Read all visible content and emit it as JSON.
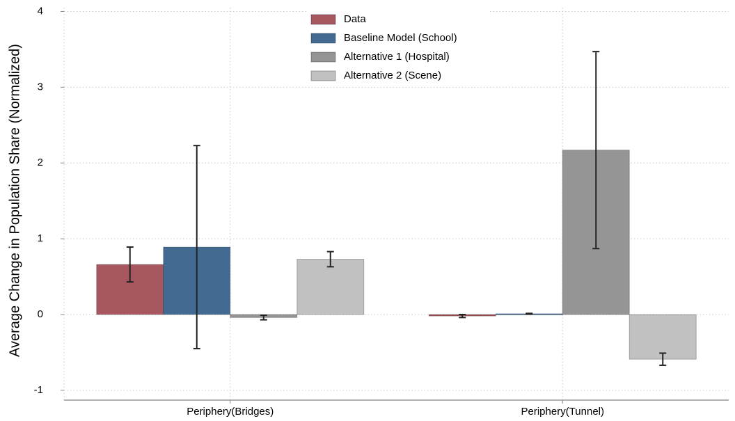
{
  "chart_data": {
    "type": "bar",
    "y_label": "Average Change in Population Share (Normalized)",
    "categories": [
      "Periphery(Bridges)",
      "Periphery(Tunnel)"
    ],
    "series": [
      {
        "name": "Data",
        "color": "#a6575f",
        "values": [
          0.66,
          -0.02
        ],
        "errors": [
          0.23,
          0.02
        ]
      },
      {
        "name": "Baseline Model (School)",
        "color": "#436a90",
        "values": [
          0.89,
          0.01
        ],
        "errors": [
          1.34,
          0.005
        ]
      },
      {
        "name": "Alternative 1 (Hospital)",
        "color": "#959595",
        "values": [
          -0.04,
          2.17
        ],
        "errors": [
          0.03,
          1.3
        ]
      },
      {
        "name": "Alternative 2 (Scene)",
        "color": "#c1c1c1",
        "values": [
          0.73,
          -0.59
        ],
        "errors": [
          0.1,
          0.08
        ]
      }
    ],
    "ylim": [
      -1.13,
      4.05
    ],
    "yticks": [
      -1,
      0,
      1,
      2,
      3,
      4
    ],
    "grid": true
  }
}
